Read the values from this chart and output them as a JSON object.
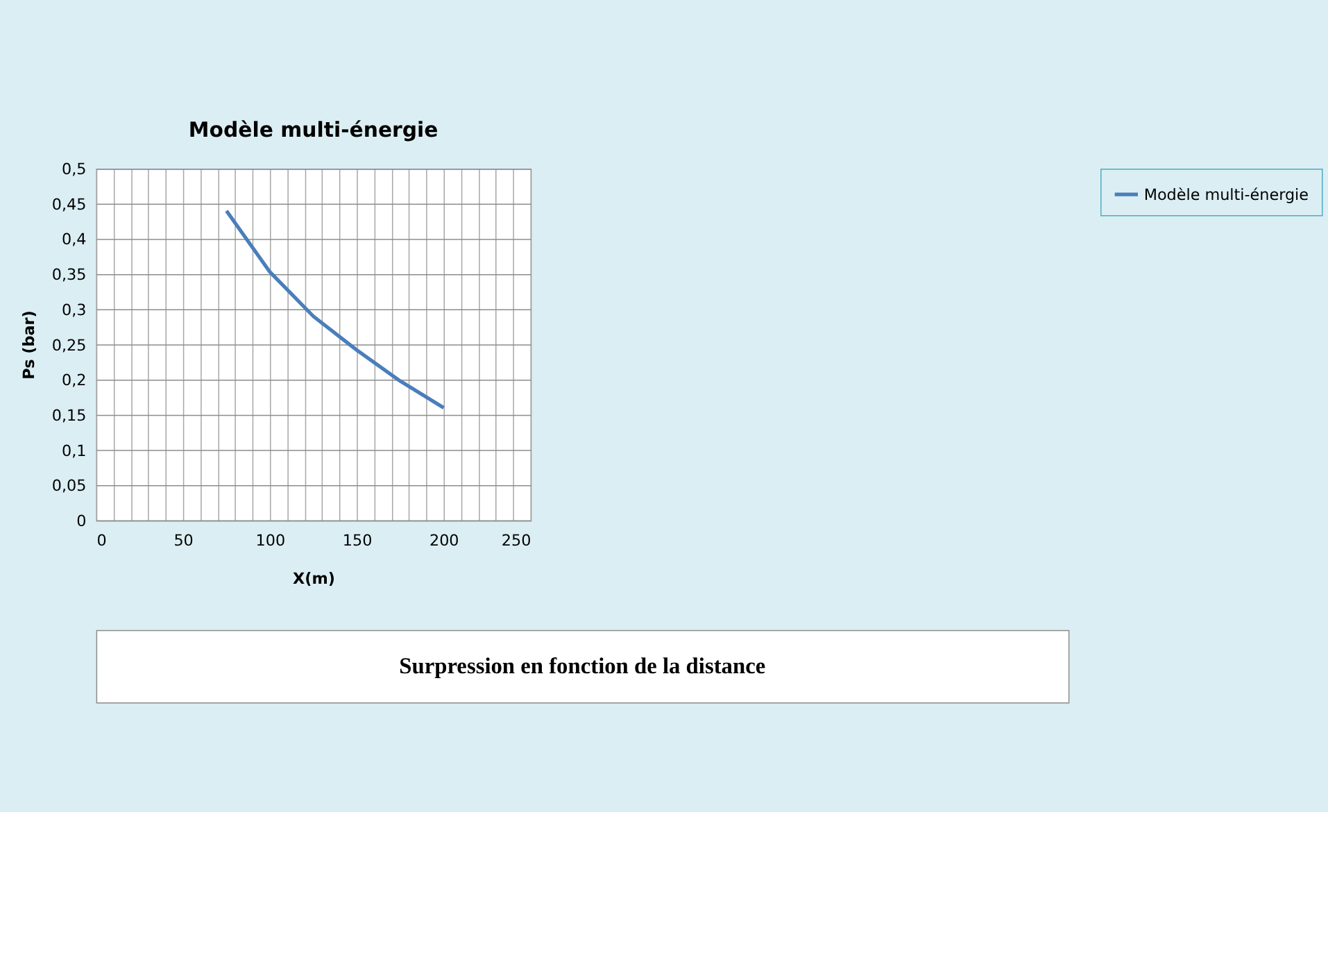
{
  "chart_data": {
    "type": "line",
    "title": "Modèle multi-énergie",
    "xlabel": "X(m)",
    "ylabel": "Ps (bar)",
    "x": [
      75,
      100,
      125,
      150,
      175,
      200
    ],
    "series": [
      {
        "name": "Modèle multi-énergie",
        "color": "#4a7ebb",
        "values": [
          0.44,
          0.353,
          0.29,
          0.242,
          0.198,
          0.16
        ]
      }
    ],
    "xlim": [
      0,
      250
    ],
    "xticks": [
      0,
      {
        "value": 10,
        "label": null
      },
      {
        "value": 20,
        "label": null
      },
      {
        "value": 30,
        "label": null
      },
      {
        "value": 40,
        "label": null
      },
      50,
      {
        "value": 60,
        "label": null
      },
      {
        "value": 70,
        "label": null
      },
      {
        "value": 80,
        "label": null
      },
      {
        "value": 90,
        "label": null
      },
      100,
      {
        "value": 110,
        "label": null
      },
      {
        "value": 120,
        "label": null
      },
      {
        "value": 130,
        "label": null
      },
      {
        "value": 140,
        "label": null
      },
      150,
      {
        "value": 160,
        "label": null
      },
      {
        "value": 170,
        "label": null
      },
      {
        "value": 180,
        "label": null
      },
      {
        "value": 190,
        "label": null
      },
      200,
      {
        "value": 210,
        "label": null
      },
      {
        "value": 220,
        "label": null
      },
      {
        "value": 230,
        "label": null
      },
      {
        "value": 240,
        "label": null
      },
      250
    ],
    "ylim": [
      0,
      0.5
    ],
    "yticks": [
      0,
      {
        "value": 0.05,
        "label": "0,05"
      },
      {
        "value": 0.1,
        "label": "0,1"
      },
      {
        "value": 0.15,
        "label": "0,15"
      },
      {
        "value": 0.2,
        "label": "0,2"
      },
      {
        "value": 0.25,
        "label": "0,25"
      },
      {
        "value": 0.3,
        "label": "0,3"
      },
      {
        "value": 0.35,
        "label": "0,35"
      },
      {
        "value": 0.4,
        "label": "0,4"
      },
      {
        "value": 0.45,
        "label": "0,45"
      },
      {
        "value": 0.5,
        "label": "0,5"
      }
    ],
    "grid": true,
    "legend": "right",
    "marker": "none",
    "line_style": "solid",
    "annotations": [
      "Surpression en fonction de la distance"
    ]
  }
}
